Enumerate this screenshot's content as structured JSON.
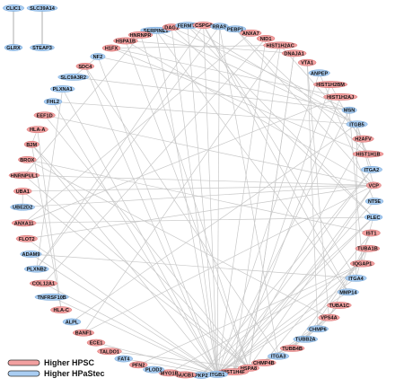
{
  "colors": {
    "higher_hpsc": "#f2a0a0",
    "higher_hpastec": "#a9cdf2",
    "higher_hpsc_stroke": "#d66a6a",
    "higher_hpastec_stroke": "#6fa2d6",
    "edge": "#c8c8c8"
  },
  "legend": [
    {
      "label": "Higher HPSC",
      "group": "hpsc"
    },
    {
      "label": "Higher HPaStec",
      "group": "hpastec"
    }
  ],
  "pairs": [
    {
      "a": "CLIC1",
      "b": "GLRX",
      "ga": "hpastec",
      "gb": "hpastec"
    },
    {
      "a": "SLC39A14",
      "b": "STEAP3",
      "ga": "hpastec",
      "gb": "hpastec"
    }
  ],
  "ring": [
    {
      "label": "SERPINE1",
      "group": "hpastec"
    },
    {
      "label": "DAG1",
      "group": "hpsc"
    },
    {
      "label": "FERMT2",
      "group": "hpastec"
    },
    {
      "label": "CSPG4",
      "group": "hpsc"
    },
    {
      "label": "RRAS",
      "group": "hpastec"
    },
    {
      "label": "PEBP1",
      "group": "hpastec"
    },
    {
      "label": "ANXA7",
      "group": "hpsc"
    },
    {
      "label": "NID1",
      "group": "hpsc"
    },
    {
      "label": "HIST1H2AC",
      "group": "hpsc"
    },
    {
      "label": "DNAJA1",
      "group": "hpsc"
    },
    {
      "label": "VTA1",
      "group": "hpsc"
    },
    {
      "label": "ANPEP",
      "group": "hpastec"
    },
    {
      "label": "HIST1H2BM",
      "group": "hpsc"
    },
    {
      "label": "HIST1H2AJ",
      "group": "hpsc"
    },
    {
      "label": "MSN",
      "group": "hpastec"
    },
    {
      "label": "ITGB5",
      "group": "hpastec"
    },
    {
      "label": "H2AFV",
      "group": "hpsc"
    },
    {
      "label": "HIST1H1B",
      "group": "hpsc"
    },
    {
      "label": "ITGA2",
      "group": "hpastec"
    },
    {
      "label": "VCP",
      "group": "hpsc"
    },
    {
      "label": "NT5E",
      "group": "hpastec"
    },
    {
      "label": "PLEC",
      "group": "hpastec"
    },
    {
      "label": "IST1",
      "group": "hpsc"
    },
    {
      "label": "TUBA1B",
      "group": "hpsc"
    },
    {
      "label": "IQGAP1",
      "group": "hpsc"
    },
    {
      "label": "ITGA4",
      "group": "hpastec"
    },
    {
      "label": "MMP14",
      "group": "hpastec"
    },
    {
      "label": "TUBA1C",
      "group": "hpsc"
    },
    {
      "label": "VPS4A",
      "group": "hpsc"
    },
    {
      "label": "CHMP6",
      "group": "hpastec"
    },
    {
      "label": "TUBB2A",
      "group": "hpastec"
    },
    {
      "label": "TUBB4B",
      "group": "hpsc"
    },
    {
      "label": "ITGA3",
      "group": "hpastec"
    },
    {
      "label": "CHMP4B",
      "group": "hpsc"
    },
    {
      "label": "HSPA8",
      "group": "hpsc"
    },
    {
      "label": "HIST1H4F",
      "group": "hpsc"
    },
    {
      "label": "ITGB1",
      "group": "hpastec"
    },
    {
      "label": "PKP2",
      "group": "hpastec"
    },
    {
      "label": "NUCB1",
      "group": "hpsc"
    },
    {
      "label": "MYO1B",
      "group": "hpsc"
    },
    {
      "label": "PLOD2",
      "group": "hpastec"
    },
    {
      "label": "PFN2",
      "group": "hpsc"
    },
    {
      "label": "FAT4",
      "group": "hpastec"
    },
    {
      "label": "TALDO1",
      "group": "hpsc"
    },
    {
      "label": "ECE1",
      "group": "hpsc"
    },
    {
      "label": "BANF1",
      "group": "hpsc"
    },
    {
      "label": "ALPL",
      "group": "hpastec"
    },
    {
      "label": "HLA-C",
      "group": "hpsc"
    },
    {
      "label": "TNFRSF10B",
      "group": "hpastec"
    },
    {
      "label": "COL12A1",
      "group": "hpsc"
    },
    {
      "label": "PLXNB2",
      "group": "hpastec"
    },
    {
      "label": "ADAM9",
      "group": "hpastec"
    },
    {
      "label": "FLOT2",
      "group": "hpsc"
    },
    {
      "label": "ANXA11",
      "group": "hpsc"
    },
    {
      "label": "UBE2D2",
      "group": "hpastec"
    },
    {
      "label": "UBA1",
      "group": "hpsc"
    },
    {
      "label": "HNRNPUL1",
      "group": "hpsc"
    },
    {
      "label": "BROX",
      "group": "hpsc"
    },
    {
      "label": "B2M",
      "group": "hpsc"
    },
    {
      "label": "HLA-A",
      "group": "hpsc"
    },
    {
      "label": "EEF1D",
      "group": "hpsc"
    },
    {
      "label": "FHL2",
      "group": "hpastec"
    },
    {
      "label": "PLXNA1",
      "group": "hpastec"
    },
    {
      "label": "SLC9A3R2",
      "group": "hpastec"
    },
    {
      "label": "SDC4",
      "group": "hpsc"
    },
    {
      "label": "NF2",
      "group": "hpastec"
    },
    {
      "label": "H1FX",
      "group": "hpsc"
    },
    {
      "label": "HSPA1B",
      "group": "hpsc"
    },
    {
      "label": "HNRNPR",
      "group": "hpsc"
    }
  ],
  "edges": [
    [
      "DAG1",
      "ITGB1"
    ],
    [
      "DAG1",
      "MSN"
    ],
    [
      "DAG1",
      "PLEC"
    ],
    [
      "CSPG4",
      "ITGB1"
    ],
    [
      "CSPG4",
      "ITGA4"
    ],
    [
      "FERMT2",
      "ITGB1"
    ],
    [
      "FERMT2",
      "ITGB5"
    ],
    [
      "RRAS",
      "ITGB1"
    ],
    [
      "RRAS",
      "PLXNB2"
    ],
    [
      "PEBP1",
      "VCP"
    ],
    [
      "ANXA7",
      "ANXA11"
    ],
    [
      "NID1",
      "ITGB1"
    ],
    [
      "NID1",
      "COL12A1"
    ],
    [
      "HIST1H2AC",
      "HIST1H4F"
    ],
    [
      "HIST1H2AC",
      "H1FX"
    ],
    [
      "HIST1H2AC",
      "H2AFV"
    ],
    [
      "DNAJA1",
      "HSPA8"
    ],
    [
      "DNAJA1",
      "HSPA1B"
    ],
    [
      "VTA1",
      "VPS4A"
    ],
    [
      "VTA1",
      "CHMP6"
    ],
    [
      "ANPEP",
      "ITGB1"
    ],
    [
      "ANPEP",
      "NT5E"
    ],
    [
      "HIST1H2BM",
      "HIST1H4F"
    ],
    [
      "HIST1H2BM",
      "HIST1H1B"
    ],
    [
      "HIST1H2AJ",
      "HIST1H4F"
    ],
    [
      "HIST1H2AJ",
      "H1FX"
    ],
    [
      "MSN",
      "ITGB1"
    ],
    [
      "MSN",
      "NF2"
    ],
    [
      "MSN",
      "SLC9A3R2"
    ],
    [
      "ITGB5",
      "ITGA4"
    ],
    [
      "ITGB5",
      "ALPL"
    ],
    [
      "H2AFV",
      "HIST1H4F"
    ],
    [
      "HIST1H1B",
      "H1FX"
    ],
    [
      "ITGA2",
      "ITGB1"
    ],
    [
      "VCP",
      "HSPA8"
    ],
    [
      "VCP",
      "UBA1"
    ],
    [
      "VCP",
      "UBE2D2"
    ],
    [
      "VCP",
      "BANF1"
    ],
    [
      "NT5E",
      "ITGB1"
    ],
    [
      "PLEC",
      "ITGB1"
    ],
    [
      "PLEC",
      "ITGA4"
    ],
    [
      "PLEC",
      "PKP2"
    ],
    [
      "IST1",
      "VPS4A"
    ],
    [
      "IST1",
      "CHMP4B"
    ],
    [
      "IST1",
      "BROX"
    ],
    [
      "TUBA1B",
      "TUBB4B"
    ],
    [
      "TUBA1B",
      "TUBB2A"
    ],
    [
      "TUBA1B",
      "IQGAP1"
    ],
    [
      "IQGAP1",
      "ITGB1"
    ],
    [
      "IQGAP1",
      "MSN"
    ],
    [
      "ITGA4",
      "ITGB1"
    ],
    [
      "MMP14",
      "ITGB1"
    ],
    [
      "MMP14",
      "CSPG4"
    ],
    [
      "TUBA1C",
      "TUBB4B"
    ],
    [
      "TUBA1C",
      "TUBB2A"
    ],
    [
      "VPS4A",
      "CHMP4B"
    ],
    [
      "VPS4A",
      "CHMP6"
    ],
    [
      "VPS4A",
      "BROX"
    ],
    [
      "CHMP6",
      "CHMP4B"
    ],
    [
      "ITGA3",
      "ITGB1"
    ],
    [
      "ITGA3",
      "SDC4"
    ],
    [
      "HSPA8",
      "HSPA1B"
    ],
    [
      "HSPA8",
      "DNAJA1"
    ],
    [
      "HSPA8",
      "B2M"
    ],
    [
      "ITGB1",
      "PLXNA1"
    ],
    [
      "ITGB1",
      "FHL2"
    ],
    [
      "ITGB1",
      "ADAM9"
    ],
    [
      "ITGB1",
      "TNFRSF10B"
    ],
    [
      "ITGB1",
      "PLOD2"
    ],
    [
      "ITGB1",
      "FAT4"
    ],
    [
      "PKP2",
      "ITGA2"
    ],
    [
      "NUCB1",
      "HSPA8"
    ],
    [
      "MYO1B",
      "IQGAP1"
    ],
    [
      "PFN2",
      "IQGAP1"
    ],
    [
      "TALDO1",
      "HSPA8"
    ],
    [
      "ECE1",
      "ITGB1"
    ],
    [
      "BANF1",
      "HIST1H2AC"
    ],
    [
      "HLA-C",
      "B2M"
    ],
    [
      "HLA-A",
      "B2M"
    ],
    [
      "HLA-C",
      "HLA-A"
    ],
    [
      "COL12A1",
      "ITGB1"
    ],
    [
      "PLXNB2",
      "PLXNA1"
    ],
    [
      "ADAM9",
      "ITGA4"
    ],
    [
      "FLOT2",
      "ITGB1"
    ],
    [
      "ANXA11",
      "HIST1H2AJ"
    ],
    [
      "UBE2D2",
      "UBA1"
    ],
    [
      "HNRNPUL1",
      "HNRNPR"
    ],
    [
      "HNRNPUL1",
      "HSPA8"
    ],
    [
      "EEF1D",
      "HSPA8"
    ],
    [
      "FHL2",
      "ITGB5"
    ],
    [
      "SLC9A3R2",
      "NF2"
    ],
    [
      "SDC4",
      "ITGB1"
    ],
    [
      "NF2",
      "ITGB1"
    ],
    [
      "HSPA1B",
      "VCP"
    ],
    [
      "HNRNPR",
      "HSPA8"
    ],
    [
      "SERPINE1",
      "ITGB1"
    ],
    [
      "SERPINE1",
      "MMP14"
    ],
    [
      "SERPINE1",
      "ITGB5"
    ],
    [
      "DAG1",
      "SERPINE1"
    ],
    [
      "TUBB4B",
      "HSPA8"
    ],
    [
      "TUBB2A",
      "HSPA8"
    ],
    [
      "HIST1H4F",
      "VCP"
    ],
    [
      "CHMP4B",
      "HSPA8"
    ],
    [
      "ITGA2",
      "ITGB5"
    ],
    [
      "ITGB5",
      "VCP"
    ],
    [
      "UBA1",
      "HSPA8"
    ],
    [
      "B2M",
      "ITGB1"
    ],
    [
      "ANXA11",
      "PLEC"
    ],
    [
      "FLOT2",
      "VCP"
    ],
    [
      "RRAS",
      "ITGA3"
    ],
    [
      "FERMT2",
      "PLEC"
    ],
    [
      "CSPG4",
      "PLXNB2"
    ],
    [
      "PEBP1",
      "HIST1H1B"
    ],
    [
      "EEF1D",
      "VCP"
    ],
    [
      "HNRNPUL1",
      "VCP"
    ]
  ]
}
